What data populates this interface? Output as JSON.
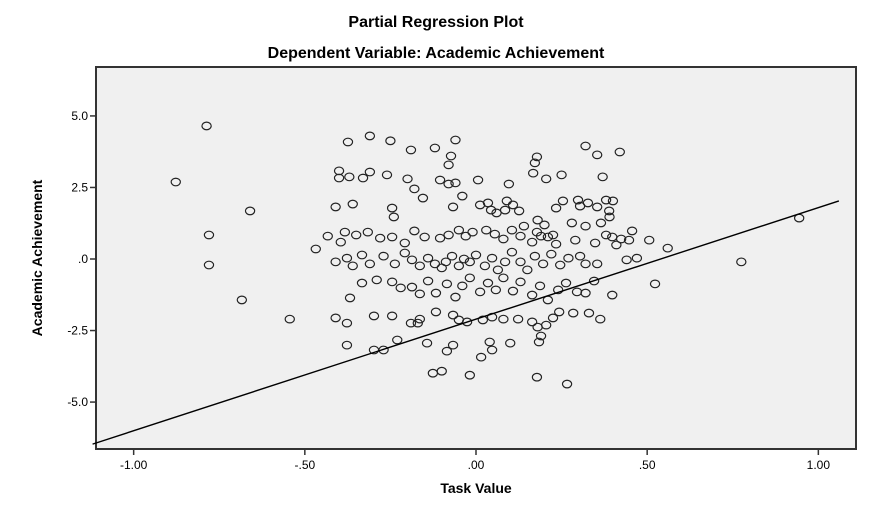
{
  "chart_data": {
    "type": "scatter",
    "title": "Partial Regression Plot",
    "subtitle": "Dependent Variable: Academic Achievement",
    "xlabel": "Task Value",
    "ylabel": "Academic Achievement",
    "xlim": [
      -1.11,
      1.11
    ],
    "ylim": [
      -6.64,
      6.71
    ],
    "x_ticks": [
      -1.0,
      -0.5,
      0.0,
      0.5,
      1.0
    ],
    "x_tick_labels": [
      "-1.00",
      "-.50",
      ".00",
      ".50",
      "1.00"
    ],
    "y_ticks": [
      5.0,
      2.5,
      0.0,
      -2.5,
      -5.0
    ],
    "y_tick_labels": [
      "5.0",
      "2.5",
      ".0",
      "-2.5",
      "-5.0"
    ],
    "grid": false,
    "legend": "none",
    "colors": {
      "background": "#f0f0f0",
      "marker": "#222222",
      "line": "#000000"
    },
    "regression_line": {
      "x": [
        -1.12,
        1.06
      ],
      "y": [
        -6.47,
        2.03
      ]
    },
    "points": [
      [
        -0.787,
        4.65
      ],
      [
        -0.877,
        2.69
      ],
      [
        -0.66,
        1.68
      ],
      [
        -0.78,
        0.84
      ],
      [
        -0.78,
        -0.21
      ],
      [
        -0.684,
        -1.43
      ],
      [
        -0.544,
        -2.1
      ],
      [
        0.944,
        1.43
      ],
      [
        0.775,
        -0.1
      ],
      [
        0.523,
        -0.87
      ],
      [
        0.56,
        0.38
      ],
      [
        0.506,
        0.66
      ],
      [
        -0.374,
        4.09
      ],
      [
        -0.31,
        4.3
      ],
      [
        -0.25,
        4.13
      ],
      [
        -0.12,
        3.88
      ],
      [
        -0.19,
        3.81
      ],
      [
        -0.06,
        4.16
      ],
      [
        -0.073,
        3.6
      ],
      [
        -0.08,
        3.29
      ],
      [
        -0.26,
        2.94
      ],
      [
        -0.4,
        3.08
      ],
      [
        -0.4,
        2.83
      ],
      [
        -0.37,
        2.87
      ],
      [
        -0.33,
        2.83
      ],
      [
        -0.31,
        3.04
      ],
      [
        -0.2,
        2.8
      ],
      [
        -0.18,
        2.45
      ],
      [
        -0.105,
        2.76
      ],
      [
        -0.08,
        2.62
      ],
      [
        -0.06,
        2.66
      ],
      [
        0.006,
        2.76
      ],
      [
        -0.41,
        1.82
      ],
      [
        -0.36,
        1.92
      ],
      [
        -0.245,
        1.78
      ],
      [
        -0.24,
        1.47
      ],
      [
        -0.155,
        2.13
      ],
      [
        -0.067,
        1.82
      ],
      [
        -0.04,
        2.2
      ],
      [
        0.32,
        3.95
      ],
      [
        0.354,
        3.64
      ],
      [
        0.42,
        3.74
      ],
      [
        0.178,
        3.57
      ],
      [
        0.172,
        3.36
      ],
      [
        0.167,
        3.0
      ],
      [
        0.205,
        2.8
      ],
      [
        0.25,
        2.94
      ],
      [
        0.37,
        2.87
      ],
      [
        0.096,
        2.62
      ],
      [
        0.09,
        2.03
      ],
      [
        0.085,
        1.71
      ],
      [
        0.108,
        1.89
      ],
      [
        0.126,
        1.68
      ],
      [
        0.234,
        1.78
      ],
      [
        0.254,
        2.03
      ],
      [
        0.298,
        2.06
      ],
      [
        0.304,
        1.85
      ],
      [
        0.327,
        1.96
      ],
      [
        0.354,
        1.82
      ],
      [
        0.38,
        2.06
      ],
      [
        0.4,
        2.03
      ],
      [
        0.389,
        1.68
      ],
      [
        0.39,
        1.47
      ],
      [
        0.365,
        1.26
      ],
      [
        0.348,
        0.56
      ],
      [
        0.38,
        0.84
      ],
      [
        0.398,
        0.77
      ],
      [
        0.424,
        0.7
      ],
      [
        0.447,
        0.66
      ],
      [
        0.456,
        0.98
      ],
      [
        0.32,
        1.15
      ],
      [
        0.28,
        1.26
      ],
      [
        0.29,
        0.66
      ],
      [
        0.234,
        0.52
      ],
      [
        0.14,
        1.15
      ],
      [
        0.178,
        0.94
      ],
      [
        0.21,
        0.77
      ],
      [
        0.035,
        1.96
      ],
      [
        0.012,
        1.89
      ],
      [
        0.044,
        1.71
      ],
      [
        0.06,
        1.61
      ],
      [
        0.2,
        1.19
      ],
      [
        0.18,
        1.36
      ],
      [
        -0.433,
        0.8
      ],
      [
        -0.395,
        0.59
      ],
      [
        -0.383,
        0.94
      ],
      [
        -0.35,
        0.84
      ],
      [
        -0.316,
        0.94
      ],
      [
        -0.28,
        0.73
      ],
      [
        -0.245,
        0.77
      ],
      [
        -0.208,
        0.56
      ],
      [
        -0.18,
        0.98
      ],
      [
        -0.15,
        0.77
      ],
      [
        -0.105,
        0.73
      ],
      [
        -0.08,
        0.84
      ],
      [
        -0.05,
        1.01
      ],
      [
        -0.03,
        0.8
      ],
      [
        -0.01,
        0.94
      ],
      [
        0.03,
        1.01
      ],
      [
        0.055,
        0.87
      ],
      [
        0.08,
        0.7
      ],
      [
        0.105,
        1.01
      ],
      [
        0.13,
        0.8
      ],
      [
        0.164,
        0.59
      ],
      [
        0.19,
        0.8
      ],
      [
        0.225,
        0.84
      ],
      [
        -0.468,
        0.35
      ],
      [
        -0.41,
        -0.1
      ],
      [
        -0.377,
        0.03
      ],
      [
        -0.36,
        -0.24
      ],
      [
        -0.333,
        0.14
      ],
      [
        -0.31,
        -0.17
      ],
      [
        -0.27,
        0.1
      ],
      [
        -0.237,
        -0.17
      ],
      [
        -0.208,
        0.21
      ],
      [
        -0.187,
        -0.03
      ],
      [
        -0.164,
        -0.24
      ],
      [
        -0.14,
        0.03
      ],
      [
        -0.12,
        -0.17
      ],
      [
        -0.1,
        -0.31
      ],
      [
        -0.088,
        -0.1
      ],
      [
        -0.07,
        0.1
      ],
      [
        -0.05,
        -0.24
      ],
      [
        -0.035,
        0.0
      ],
      [
        -0.018,
        -0.1
      ],
      [
        0.0,
        0.14
      ],
      [
        0.026,
        -0.24
      ],
      [
        0.047,
        0.03
      ],
      [
        0.064,
        -0.38
      ],
      [
        0.085,
        -0.1
      ],
      [
        0.105,
        0.24
      ],
      [
        0.13,
        -0.1
      ],
      [
        0.15,
        -0.38
      ],
      [
        0.172,
        0.1
      ],
      [
        0.196,
        -0.17
      ],
      [
        0.22,
        0.17
      ],
      [
        0.246,
        -0.21
      ],
      [
        0.27,
        0.03
      ],
      [
        0.304,
        0.1
      ],
      [
        0.32,
        -0.17
      ],
      [
        0.354,
        -0.17
      ],
      [
        0.41,
        0.49
      ],
      [
        0.44,
        -0.03
      ],
      [
        0.47,
        0.03
      ],
      [
        -0.368,
        -1.36
      ],
      [
        -0.333,
        -0.84
      ],
      [
        -0.29,
        -0.73
      ],
      [
        -0.245,
        -0.8
      ],
      [
        -0.22,
        -1.01
      ],
      [
        -0.187,
        -0.98
      ],
      [
        -0.164,
        -1.22
      ],
      [
        -0.14,
        -0.77
      ],
      [
        -0.117,
        -1.19
      ],
      [
        -0.085,
        -0.87
      ],
      [
        -0.06,
        -1.33
      ],
      [
        -0.04,
        -0.94
      ],
      [
        -0.018,
        -0.66
      ],
      [
        0.012,
        -1.15
      ],
      [
        0.035,
        -0.84
      ],
      [
        0.058,
        -1.08
      ],
      [
        0.08,
        -0.66
      ],
      [
        0.108,
        -1.12
      ],
      [
        0.13,
        -0.8
      ],
      [
        0.164,
        -1.26
      ],
      [
        0.187,
        -0.94
      ],
      [
        0.21,
        -1.43
      ],
      [
        0.24,
        -1.08
      ],
      [
        0.263,
        -0.84
      ],
      [
        0.295,
        -1.15
      ],
      [
        0.32,
        -1.19
      ],
      [
        0.345,
        -0.77
      ],
      [
        0.398,
        -1.26
      ],
      [
        -0.41,
        -2.06
      ],
      [
        -0.377,
        -2.24
      ],
      [
        -0.298,
        -1.99
      ],
      [
        -0.245,
        -1.99
      ],
      [
        -0.19,
        -2.24
      ],
      [
        -0.17,
        -2.24
      ],
      [
        -0.23,
        -2.83
      ],
      [
        -0.164,
        -2.1
      ],
      [
        -0.117,
        -1.85
      ],
      [
        -0.067,
        -1.96
      ],
      [
        -0.05,
        -2.13
      ],
      [
        -0.026,
        -2.2
      ],
      [
        0.02,
        -2.13
      ],
      [
        0.047,
        -2.03
      ],
      [
        0.08,
        -2.1
      ],
      [
        0.123,
        -2.1
      ],
      [
        0.164,
        -2.2
      ],
      [
        0.18,
        -2.38
      ],
      [
        0.205,
        -2.31
      ],
      [
        0.225,
        -2.06
      ],
      [
        0.19,
        -2.69
      ],
      [
        0.243,
        -1.85
      ],
      [
        0.284,
        -1.89
      ],
      [
        0.33,
        -1.89
      ],
      [
        0.363,
        -2.1
      ],
      [
        -0.377,
        -3.01
      ],
      [
        -0.298,
        -3.18
      ],
      [
        -0.27,
        -3.18
      ],
      [
        -0.143,
        -2.94
      ],
      [
        -0.085,
        -3.22
      ],
      [
        -0.067,
        -3.01
      ],
      [
        0.04,
        -2.9
      ],
      [
        0.047,
        -3.18
      ],
      [
        0.015,
        -3.43
      ],
      [
        0.1,
        -2.94
      ],
      [
        0.184,
        -2.9
      ],
      [
        -0.126,
        -3.99
      ],
      [
        -0.1,
        -3.92
      ],
      [
        -0.018,
        -4.06
      ],
      [
        0.178,
        -4.13
      ],
      [
        0.266,
        -4.37
      ]
    ]
  }
}
